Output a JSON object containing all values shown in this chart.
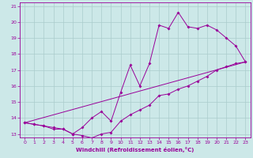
{
  "xlabel": "Windchill (Refroidissement éolien,°C)",
  "background_color": "#cce8e8",
  "line_color": "#990099",
  "grid_color": "#aacccc",
  "xlim": [
    -0.5,
    23.5
  ],
  "ylim": [
    12.8,
    21.2
  ],
  "xticks": [
    0,
    1,
    2,
    3,
    4,
    5,
    6,
    7,
    8,
    9,
    10,
    11,
    12,
    13,
    14,
    15,
    16,
    17,
    18,
    19,
    20,
    21,
    22,
    23
  ],
  "yticks": [
    13,
    14,
    15,
    16,
    17,
    18,
    19,
    20,
    21
  ],
  "curve1_x": [
    0,
    1,
    2,
    3,
    4,
    5,
    6,
    7,
    8,
    9,
    10,
    11,
    12,
    13,
    14,
    15,
    16,
    17,
    18,
    19,
    20,
    21,
    22,
    23
  ],
  "curve1_y": [
    13.7,
    13.6,
    13.5,
    13.4,
    13.3,
    13.0,
    12.9,
    12.75,
    13.0,
    13.1,
    13.8,
    14.2,
    14.5,
    14.8,
    15.4,
    15.5,
    15.8,
    16.0,
    16.3,
    16.6,
    17.0,
    17.2,
    17.4,
    17.5
  ],
  "curve2_x": [
    0,
    1,
    2,
    3,
    4,
    5,
    6,
    7,
    8,
    9,
    10,
    11,
    12,
    13,
    14,
    15,
    16,
    17,
    18,
    19,
    20,
    21,
    22,
    23
  ],
  "curve2_y": [
    13.7,
    13.6,
    13.5,
    13.3,
    13.3,
    13.0,
    13.4,
    14.0,
    14.4,
    13.8,
    15.6,
    17.3,
    16.0,
    17.4,
    19.8,
    19.6,
    20.6,
    19.7,
    19.6,
    19.8,
    19.5,
    19.0,
    18.5,
    17.5
  ],
  "curve3_x": [
    0,
    23
  ],
  "curve3_y": [
    13.7,
    17.5
  ]
}
